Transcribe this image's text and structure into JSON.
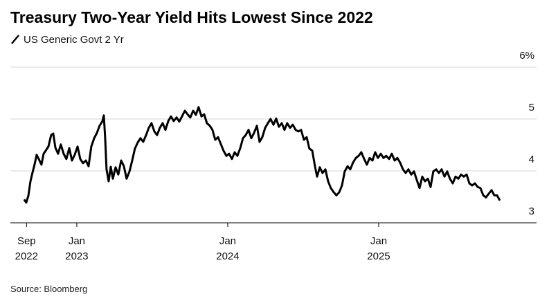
{
  "chart_data": {
    "type": "line",
    "title": "Treasury Two-Year Yield Hits Lowest Since 2022",
    "source": "Source: Bloomberg",
    "x": [
      2022.651,
      2022.665,
      2022.679,
      2022.693,
      2022.706,
      2022.72,
      2022.734,
      2022.748,
      2022.766,
      2022.78,
      2022.794,
      2022.812,
      2022.83,
      2022.844,
      2022.858,
      2022.876,
      2022.894,
      2022.913,
      2022.931,
      2022.95,
      2022.968,
      2022.986,
      2023.005,
      2023.023,
      2023.041,
      2023.06,
      2023.078,
      2023.096,
      2023.115,
      2023.133,
      2023.151,
      2023.17,
      2023.179,
      2023.188,
      2023.197,
      2023.211,
      2023.225,
      2023.239,
      2023.257,
      2023.275,
      2023.294,
      2023.312,
      2023.33,
      2023.349,
      2023.367,
      2023.385,
      2023.404,
      2023.422,
      2023.44,
      2023.459,
      2023.477,
      2023.495,
      2023.514,
      2023.532,
      2023.55,
      2023.569,
      2023.587,
      2023.606,
      2023.624,
      2023.642,
      2023.661,
      2023.679,
      2023.697,
      2023.716,
      2023.734,
      2023.752,
      2023.771,
      2023.789,
      2023.807,
      2023.826,
      2023.844,
      2023.862,
      2023.881,
      2023.899,
      2023.917,
      2023.936,
      2023.954,
      2023.972,
      2023.991,
      2024.009,
      2024.028,
      2024.046,
      2024.064,
      2024.083,
      2024.101,
      2024.119,
      2024.138,
      2024.156,
      2024.174,
      2024.193,
      2024.211,
      2024.229,
      2024.248,
      2024.266,
      2024.284,
      2024.303,
      2024.321,
      2024.339,
      2024.358,
      2024.376,
      2024.394,
      2024.413,
      2024.431,
      2024.45,
      2024.468,
      2024.486,
      2024.505,
      2024.523,
      2024.541,
      2024.56,
      2024.578,
      2024.592,
      2024.61,
      2024.628,
      2024.647,
      2024.665,
      2024.683,
      2024.702,
      2024.72,
      2024.739,
      2024.757,
      2024.775,
      2024.794,
      2024.812,
      2024.83,
      2024.849,
      2024.867,
      2024.885,
      2024.904,
      2024.922,
      2024.94,
      2024.959,
      2024.977,
      2024.995,
      2025.014,
      2025.032,
      2025.05,
      2025.069,
      2025.087,
      2025.106,
      2025.124,
      2025.142,
      2025.161,
      2025.179,
      2025.197,
      2025.216,
      2025.234,
      2025.252,
      2025.271,
      2025.289,
      2025.307,
      2025.326,
      2025.344,
      2025.362,
      2025.381,
      2025.399,
      2025.417,
      2025.436,
      2025.454,
      2025.472,
      2025.491,
      2025.509,
      2025.528,
      2025.546,
      2025.564,
      2025.583,
      2025.601,
      2025.619,
      2025.638,
      2025.656,
      2025.674,
      2025.693,
      2025.711,
      2025.729,
      2025.748,
      2025.766,
      2025.784,
      2025.803
    ],
    "series": [
      {
        "name": "US Generic Govt 2 Yr",
        "color": "#000000",
        "values": [
          3.45,
          3.39,
          3.52,
          3.8,
          3.96,
          4.12,
          4.31,
          4.23,
          4.12,
          4.33,
          4.39,
          4.47,
          4.69,
          4.72,
          4.45,
          4.33,
          4.51,
          4.33,
          4.23,
          4.44,
          4.2,
          4.31,
          4.47,
          4.23,
          4.15,
          4.2,
          4.09,
          4.47,
          4.63,
          4.73,
          4.87,
          4.96,
          5.07,
          4.63,
          4.03,
          3.8,
          4.08,
          3.85,
          4.07,
          3.93,
          4.2,
          4.09,
          3.85,
          3.99,
          4.2,
          4.43,
          4.55,
          4.63,
          4.56,
          4.69,
          4.83,
          4.92,
          4.76,
          4.69,
          4.83,
          4.92,
          4.79,
          4.96,
          5.05,
          4.96,
          5.03,
          4.95,
          5.05,
          5.16,
          5.09,
          5.03,
          5.16,
          5.08,
          5.23,
          5.05,
          5.09,
          4.92,
          4.87,
          4.79,
          4.6,
          4.65,
          4.52,
          4.39,
          4.29,
          4.33,
          4.23,
          4.36,
          4.29,
          4.44,
          4.63,
          4.69,
          4.79,
          4.63,
          4.73,
          4.87,
          4.56,
          4.65,
          4.83,
          4.92,
          5.0,
          4.89,
          5.01,
          4.85,
          4.92,
          4.79,
          4.92,
          4.83,
          4.89,
          4.79,
          4.76,
          4.79,
          4.6,
          4.65,
          4.43,
          4.39,
          4.09,
          3.89,
          4.07,
          3.96,
          4.03,
          3.8,
          3.67,
          3.59,
          3.53,
          3.59,
          3.72,
          3.99,
          4.09,
          4.03,
          4.16,
          4.25,
          4.29,
          4.36,
          4.23,
          4.12,
          4.25,
          4.2,
          4.36,
          4.25,
          4.33,
          4.25,
          4.29,
          4.23,
          4.33,
          4.2,
          4.25,
          4.16,
          4.03,
          3.96,
          4.03,
          3.93,
          3.99,
          3.83,
          3.67,
          3.89,
          3.8,
          3.85,
          3.69,
          3.99,
          4.03,
          3.96,
          4.03,
          3.89,
          3.99,
          3.85,
          3.76,
          3.89,
          3.85,
          3.93,
          3.89,
          3.93,
          3.76,
          3.72,
          3.76,
          3.69,
          3.67,
          3.53,
          3.49,
          3.56,
          3.63,
          3.53,
          3.53,
          3.43
        ]
      }
    ],
    "xlim": [
      2022.56,
      2026.046
    ],
    "xticks": [
      {
        "value": 2022.667,
        "label": "Sep 2022"
      },
      {
        "value": 2023,
        "label": "Jan 2023"
      },
      {
        "value": 2024,
        "label": "Jan 2024"
      },
      {
        "value": 2025,
        "label": "Jan 2025"
      }
    ],
    "ylim": [
      3,
      6
    ],
    "yticks": [
      3,
      4,
      5,
      {
        "value": 6,
        "label": "6%"
      }
    ],
    "grid": true
  }
}
